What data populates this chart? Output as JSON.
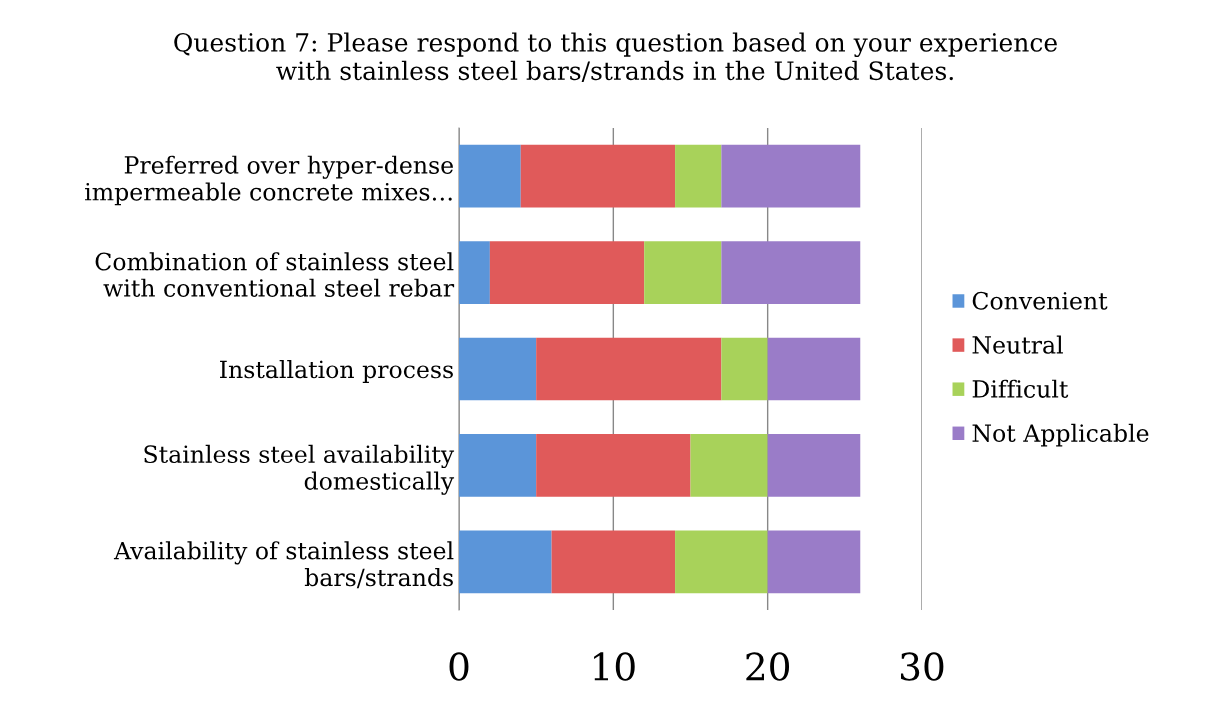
{
  "chart_data": {
    "type": "bar",
    "orientation": "horizontal",
    "stacked": true,
    "title": "Question 7: Please respond to this question based on your experience\nwith stainless steel bars/strands in the United States.",
    "categories": [
      "Preferred over hyper-dense\nimpermeable concrete mixes…",
      "Combination of stainless steel\nwith conventional steel rebar",
      "Installation process",
      "Stainless steel availability\ndomestically",
      "Availability of stainless steel\nbars/strands"
    ],
    "series": [
      {
        "name": "Convenient",
        "color": "#5b95d9",
        "values": [
          4,
          2,
          5,
          5,
          6
        ]
      },
      {
        "name": "Neutral",
        "color": "#e05a5a",
        "values": [
          10,
          10,
          12,
          10,
          8
        ]
      },
      {
        "name": "Difficult",
        "color": "#a8d25a",
        "values": [
          3,
          5,
          3,
          5,
          6
        ]
      },
      {
        "name": "Not Applicable",
        "color": "#9a7cc8",
        "values": [
          9,
          9,
          6,
          6,
          6
        ]
      }
    ],
    "xlim": [
      0,
      30
    ],
    "xticks": [
      0,
      10,
      20,
      30
    ],
    "grid": "x",
    "legend": "right"
  }
}
